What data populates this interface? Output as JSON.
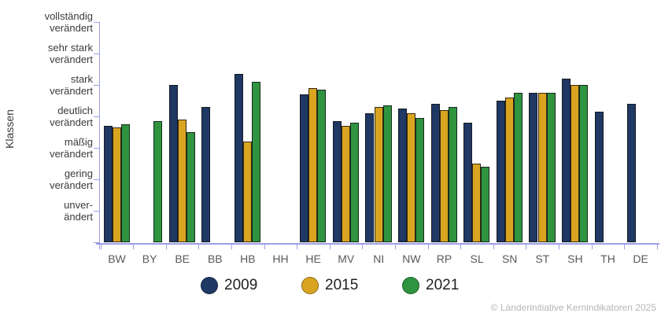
{
  "chart_data": {
    "type": "bar",
    "title": "",
    "categories": [
      "BW",
      "BY",
      "BE",
      "BB",
      "HB",
      "HH",
      "HE",
      "MV",
      "NI",
      "NW",
      "RP",
      "SL",
      "SN",
      "ST",
      "SH",
      "TH",
      "DE"
    ],
    "series": [
      {
        "name": "2009",
        "color": "#1F3864",
        "values": [
          3.7,
          null,
          5.0,
          4.3,
          5.35,
          null,
          4.7,
          3.85,
          4.1,
          4.25,
          4.4,
          3.8,
          4.5,
          4.75,
          5.2,
          4.15,
          4.4
        ]
      },
      {
        "name": "2015",
        "color": "#D9A521",
        "values": [
          3.65,
          null,
          3.9,
          null,
          3.2,
          null,
          4.9,
          3.7,
          4.3,
          4.1,
          4.2,
          2.5,
          4.6,
          4.75,
          5.0,
          null,
          null
        ]
      },
      {
        "name": "2021",
        "color": "#2E9440",
        "values": [
          3.75,
          3.85,
          3.5,
          null,
          5.1,
          null,
          4.85,
          3.8,
          4.35,
          3.95,
          4.3,
          2.4,
          4.75,
          4.75,
          5.0,
          null,
          null
        ]
      }
    ],
    "y_axis": {
      "label": "Klassen",
      "range": [
        0,
        7
      ],
      "grid": false,
      "class_ticks": [
        {
          "value": 7,
          "label": "vollständig\nverändert"
        },
        {
          "value": 6,
          "label": "sehr stark\nverändert"
        },
        {
          "value": 5,
          "label": "stark\nverändert"
        },
        {
          "value": 4,
          "label": "deutlich\nverändert"
        },
        {
          "value": 3,
          "label": "mäßig\nverändert"
        },
        {
          "value": 2,
          "label": "gering\nverändert"
        },
        {
          "value": 1,
          "label": "unver-\nändert"
        }
      ]
    },
    "legend_position": "bottom"
  },
  "footer": {
    "copyright": "© Länderinitiative Kernindikatoren 2025"
  },
  "colors": {
    "axis": "#9D9FE5",
    "y_label_text": "#3A3A3A",
    "x_label_text": "#595959",
    "legend_text": "#1F1F1F",
    "copyright_text": "#B5B5B5",
    "background": "#FFFFFF"
  }
}
